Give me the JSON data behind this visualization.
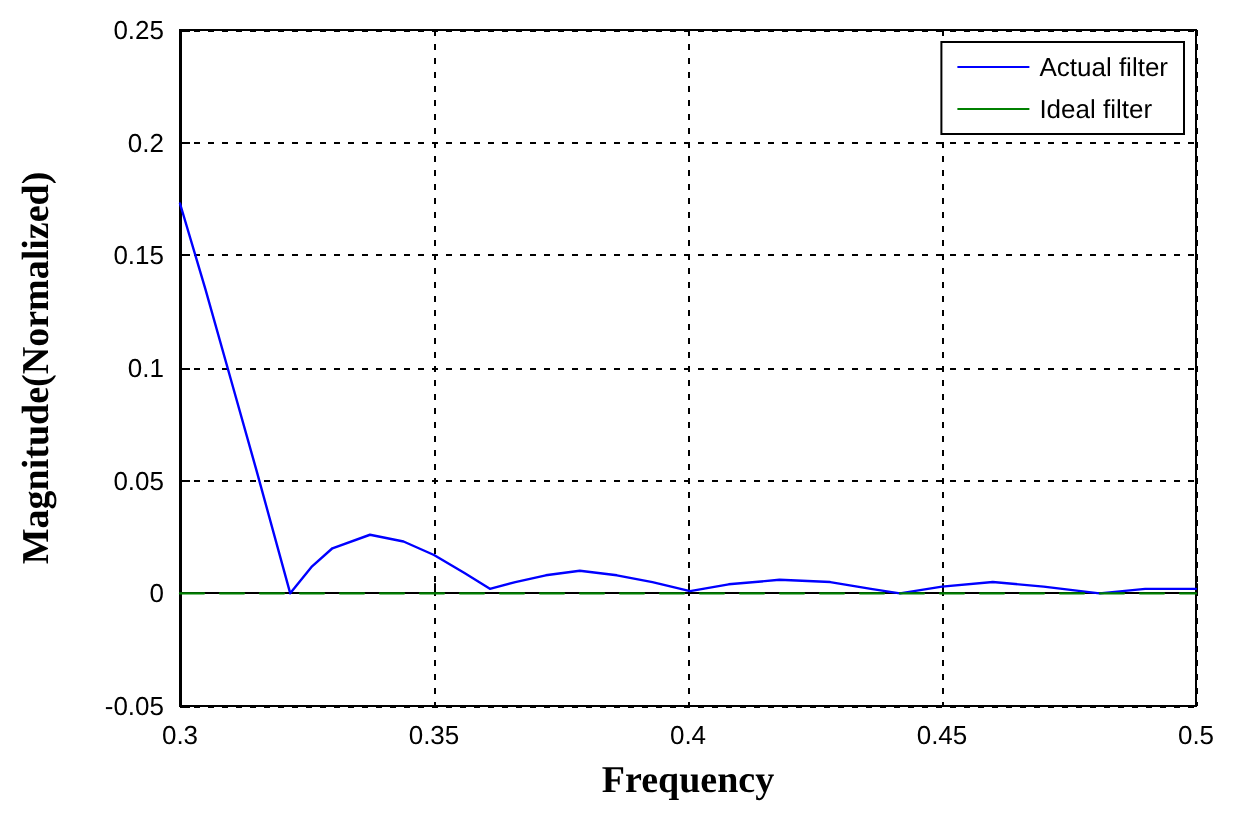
{
  "chart_data": {
    "type": "line",
    "xlabel": "Frequency",
    "ylabel": "Magnitude(Normalized)",
    "xlim": [
      0.3,
      0.5
    ],
    "xticks": [
      0.3,
      0.35,
      0.4,
      0.45,
      0.5
    ],
    "ylim": [
      -0.05,
      0.25
    ],
    "yticks": [
      -0.05,
      0,
      0.05,
      0.1,
      0.15,
      0.2,
      0.25
    ],
    "grid": true,
    "legend": "top right",
    "marker": "none",
    "series": [
      {
        "name": "Actual filter",
        "color": "#0000ff",
        "line_style": "solid",
        "x": [
          0.3,
          0.305,
          0.31,
          0.315,
          0.3217,
          0.326,
          0.33,
          0.3374,
          0.344,
          0.35,
          0.356,
          0.361,
          0.366,
          0.372,
          0.3787,
          0.386,
          0.393,
          0.4004,
          0.408,
          0.418,
          0.428,
          0.436,
          0.4417,
          0.45,
          0.46,
          0.47,
          0.481,
          0.49,
          0.5
        ],
        "values": [
          0.173,
          0.135,
          0.095,
          0.055,
          0,
          0.012,
          0.02,
          0.026,
          0.023,
          0.017,
          0.009,
          0.002,
          0.005,
          0.008,
          0.01,
          0.008,
          0.005,
          0.001,
          0.004,
          0.006,
          0.005,
          0.002,
          0,
          0.003,
          0.005,
          0.003,
          0,
          0.002,
          0.002
        ]
      },
      {
        "name": "Ideal filter",
        "color": "#008000",
        "line_style": "dashed",
        "x": [
          0.3,
          0.5
        ],
        "values": [
          0,
          0
        ]
      }
    ]
  }
}
